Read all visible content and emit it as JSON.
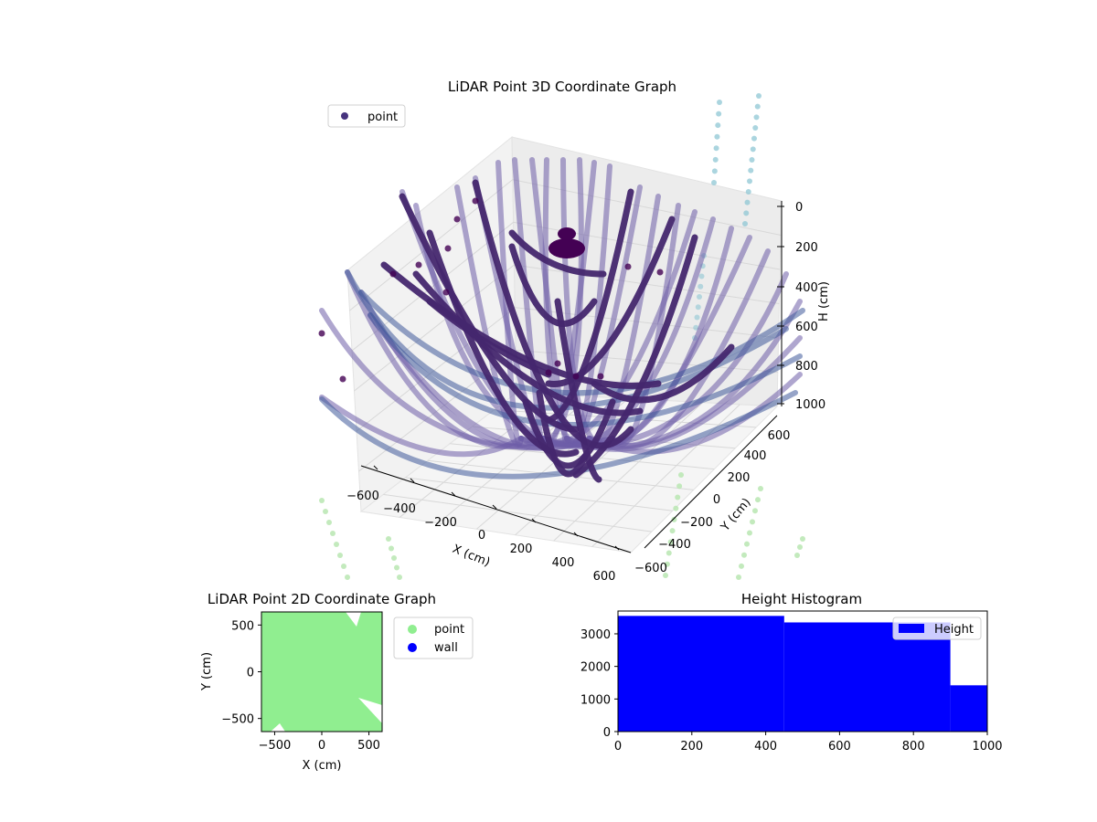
{
  "colors": {
    "point3d": "#46337e",
    "point3d_light": "#6e5da8",
    "point3d_bottom": "#3f5a9a",
    "teal": "#8fc7d4",
    "green_pts": "#b9e6b1",
    "point2d": "#90ee90",
    "wall": "#0000ff",
    "hist": "#0000ff"
  },
  "chart_data": [
    {
      "type": "scatter",
      "title": "LiDAR Point 3D Coordinate Graph",
      "xlabel": "X (cm)",
      "ylabel": "Y (cm)",
      "zlabel": "H (cm)",
      "x_ticks": [
        "−600",
        "−400",
        "−200",
        "0",
        "200",
        "400",
        "600"
      ],
      "y_ticks": [
        "−600",
        "−400",
        "−200",
        "0",
        "200",
        "400",
        "600"
      ],
      "z_ticks": [
        "0",
        "200",
        "400",
        "600",
        "800",
        "1000"
      ],
      "xlim": [
        -600,
        600
      ],
      "ylim": [
        -600,
        600
      ],
      "zlim": [
        0,
        1000
      ],
      "z_inverted": true,
      "grid": true,
      "legend": {
        "placement": "upper-left",
        "entries": [
          "point"
        ]
      },
      "series": [
        {
          "name": "point",
          "marker": "circle"
        }
      ]
    },
    {
      "type": "scatter",
      "title": "LiDAR Point 2D Coordinate Graph",
      "xlabel": "X (cm)",
      "ylabel": "Y (cm)",
      "x_ticks": [
        "−500",
        "0",
        "500"
      ],
      "y_ticks": [
        "500",
        "0",
        "−500"
      ],
      "xlim": [
        -640,
        640
      ],
      "ylim": [
        -640,
        640
      ],
      "legend": {
        "placement": "outside-right",
        "entries": [
          "point",
          "wall"
        ]
      },
      "series": [
        {
          "name": "point",
          "color": "#90ee90"
        },
        {
          "name": "wall",
          "color": "#0000ff"
        }
      ]
    },
    {
      "type": "bar",
      "title": "Height Histogram",
      "x_ticks": [
        "0",
        "200",
        "400",
        "600",
        "800",
        "1000"
      ],
      "y_ticks": [
        "0",
        "1000",
        "2000",
        "3000"
      ],
      "xlim": [
        0,
        1000
      ],
      "ylim": [
        0,
        3700
      ],
      "bins": [
        {
          "from": 0,
          "to": 450,
          "count": 3550
        },
        {
          "from": 450,
          "to": 900,
          "count": 3350
        },
        {
          "from": 900,
          "to": 1000,
          "count": 1420
        }
      ],
      "legend": {
        "placement": "upper-right",
        "entries": [
          "Height"
        ]
      },
      "series": [
        {
          "name": "Height",
          "color": "#0000ff"
        }
      ]
    }
  ]
}
